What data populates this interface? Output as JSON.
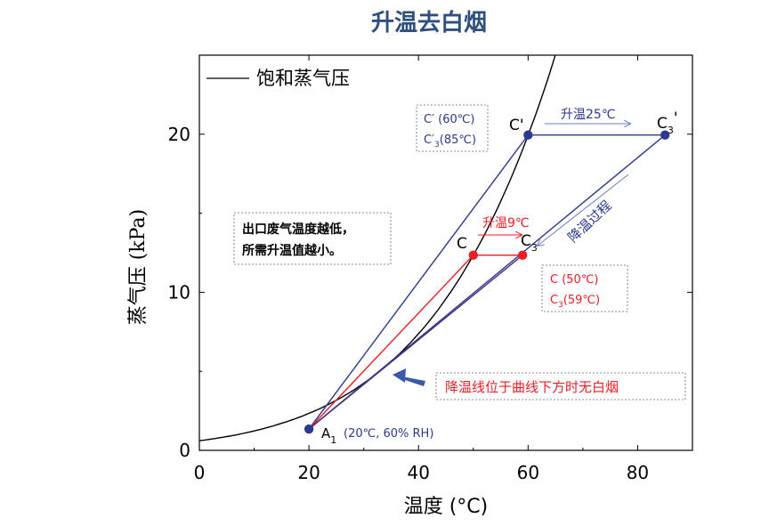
{
  "chart_data": {
    "type": "line",
    "title": "升温去白烟",
    "xlabel": "温度 (°C)",
    "ylabel": "蒸气压 (kPa)",
    "xlim": [
      0,
      90
    ],
    "ylim": [
      0,
      25
    ],
    "x_ticks": [
      0,
      20,
      40,
      60,
      80
    ],
    "y_ticks": [
      0,
      10,
      20
    ],
    "grid": false,
    "legend": {
      "position": "top-left",
      "entries": [
        "饱和蒸气压"
      ]
    },
    "colors": {
      "curve": "#000000",
      "blue": "#2b3990",
      "red": "#ee1c25",
      "purple": "#4b2a7a",
      "title": "#2f4f7f"
    },
    "series": [
      {
        "name": "饱和蒸气压",
        "x": [
          0,
          5,
          10,
          15,
          20,
          25,
          30,
          35,
          40,
          45,
          50,
          55,
          60,
          65
        ],
        "y": [
          0.61,
          0.87,
          1.23,
          1.71,
          2.34,
          3.17,
          4.25,
          5.63,
          7.38,
          9.59,
          12.35,
          15.76,
          19.95,
          25.04
        ]
      }
    ],
    "points": [
      {
        "id": "A1",
        "label": "A",
        "sub": "1",
        "x": 20,
        "y": 1.35,
        "color": "#2b3990"
      },
      {
        "id": "Cp",
        "label": "C'",
        "sub": "",
        "x": 60,
        "y": 19.95,
        "color": "#2b3990"
      },
      {
        "id": "C3p",
        "label": "C",
        "sub": "3",
        "sup": "'",
        "x": 85,
        "y": 19.95,
        "color": "#2b3990"
      },
      {
        "id": "C",
        "label": "C",
        "sub": "",
        "x": 50,
        "y": 12.35,
        "color": "#ee1c25"
      },
      {
        "id": "C3",
        "label": "C",
        "sub": "3",
        "x": 59,
        "y": 12.35,
        "color": "#ee1c25"
      }
    ],
    "segments": [
      {
        "from": "A1",
        "to": "Cp",
        "color": "#2b3990"
      },
      {
        "from": "Cp",
        "to": "C3p",
        "color": "#2b3990"
      },
      {
        "from": "C3p",
        "to": "A1",
        "color": "#2b3990"
      },
      {
        "from": "A1",
        "to": "C",
        "color": "#ee1c25"
      },
      {
        "from": "C",
        "to": "C3",
        "color": "#ee1c25"
      },
      {
        "from": "C3",
        "to": "A1",
        "color": "#4b2a7a"
      }
    ],
    "annotations": {
      "a1_state": "(20℃, 60% RH)",
      "box_high_1": "C′ (60℃)",
      "box_high_2a": "C′",
      "box_high_2b": "3",
      "box_high_2c": "(85℃)",
      "box_low_1": "C (50℃)",
      "box_low_2a": "C",
      "box_low_2b": "3",
      "box_low_2c": "(59℃)",
      "heat25": "升温25℃",
      "heat9": "升温9℃",
      "cooling": "降温过程",
      "note_line1": "出口废气温度越低，",
      "note_line2": "所需升温值越小。",
      "below_curve": "降温线位于曲线下方时无白烟"
    }
  }
}
